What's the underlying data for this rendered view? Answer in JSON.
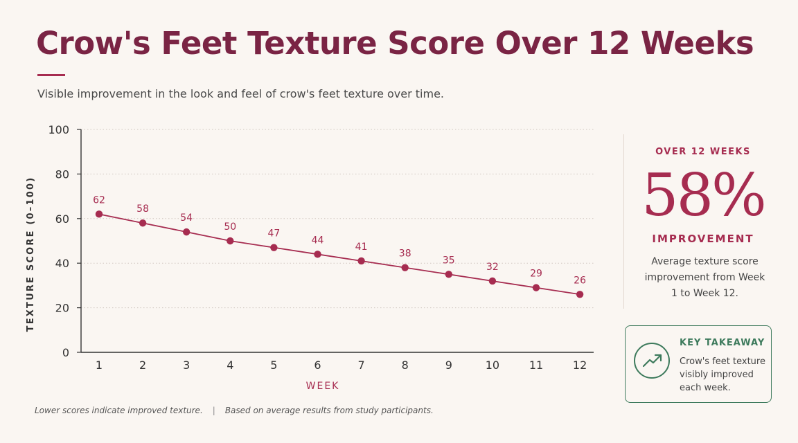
{
  "header": {
    "title": "Crow's Feet Texture Score Over 12 Weeks",
    "subtitle": "Visible improvement in the look and feel of crow's feet texture over time."
  },
  "chart_data": {
    "type": "line",
    "title": "Crow's Feet Texture Score Over 12 Weeks",
    "xlabel": "WEEK",
    "ylabel": "TEXTURE SCORE (0–100)",
    "categories": [
      "1",
      "2",
      "3",
      "4",
      "5",
      "6",
      "7",
      "8",
      "9",
      "10",
      "11",
      "12"
    ],
    "values": [
      62,
      58,
      54,
      50,
      47,
      44,
      41,
      38,
      35,
      32,
      29,
      26
    ],
    "yticks": [
      "0",
      "20",
      "40",
      "60",
      "80",
      "100"
    ],
    "ylim": [
      0,
      100
    ],
    "grid": true,
    "data_labels": true,
    "line_color": "#a62c50"
  },
  "kpi": {
    "label": "OVER 12 WEEKS",
    "value": "58%",
    "caption": "IMPROVEMENT",
    "description": "Average texture score improvement from Week 1 to Week 12."
  },
  "takeaway": {
    "icon": "trending-up-icon",
    "title": "KEY TAKEAWAY",
    "body": "Crow's feet texture visibly improved each week.",
    "color": "#3d7a5c"
  },
  "footer": {
    "note_left": "Lower scores indicate improved texture.",
    "separator": "|",
    "note_right": "Based on average results from study participants."
  },
  "colors": {
    "title": "#7a2444",
    "accent": "#a62c50",
    "background": "#faf6f2"
  }
}
